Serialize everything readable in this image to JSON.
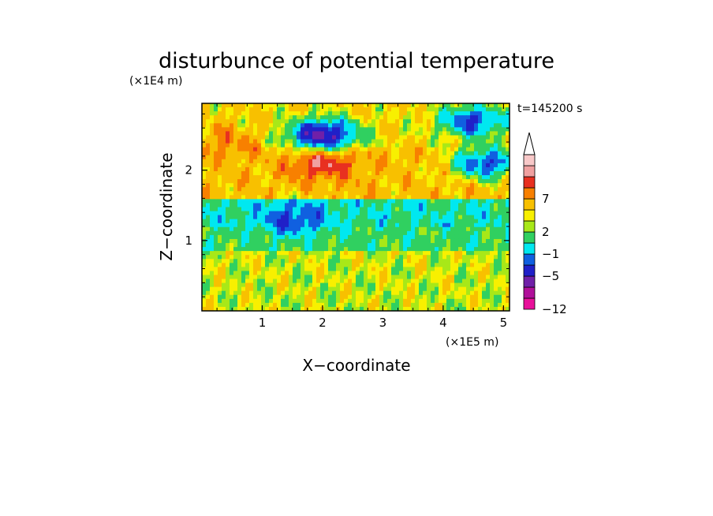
{
  "chart_data": {
    "type": "heatmap",
    "title": "disturbunce of potential temperature",
    "xlabel": "X−coordinate",
    "ylabel": "Z−coordinate",
    "x_unit": "(×1E5 m)",
    "y_unit": "(×1E4 m)",
    "time_label": "t=145200 s",
    "xlim": [
      0,
      5.1
    ],
    "ylim": [
      0,
      2.95
    ],
    "x_ticks": [
      "1",
      "2",
      "3",
      "4",
      "5"
    ],
    "y_ticks": [
      "1",
      "2"
    ],
    "x_tick_values": [
      1,
      2,
      3,
      4,
      5
    ],
    "y_tick_values": [
      1,
      2
    ],
    "colorbar": {
      "levels": [
        -12,
        -10,
        -8,
        -5,
        -3,
        -1,
        1,
        2,
        3,
        5,
        7,
        9,
        11
      ],
      "labels": [
        "−12",
        "−5",
        "−1",
        "2",
        "7"
      ],
      "label_values": [
        -12,
        -5,
        -1,
        2,
        7
      ],
      "colors": [
        "#e8109a",
        "#b0109a",
        "#7020a8",
        "#2020c8",
        "#1060e0",
        "#00e8f0",
        "#30d060",
        "#a8e818",
        "#f8f000",
        "#f8c000",
        "#f88000",
        "#e83020",
        "#f0a0a0",
        "#f8c8c8"
      ],
      "extend": "max"
    },
    "field": {
      "description_of_bands": [
        {
          "z_range": [
            0.0,
            0.85
          ],
          "value": 2
        },
        {
          "z_range": [
            0.85,
            1.2
          ],
          "value": 0
        },
        {
          "z_range": [
            1.2,
            1.6
          ],
          "value": -1
        },
        {
          "z_range": [
            1.6,
            2.3
          ],
          "value": 4
        },
        {
          "z_range": [
            2.3,
            2.95
          ],
          "value": 3
        }
      ],
      "features": [
        {
          "x": 2.0,
          "z": 2.5,
          "value": -9
        },
        {
          "x": 2.0,
          "z": 2.1,
          "value": 9
        },
        {
          "x": 0.4,
          "z": 2.4,
          "value": 6
        },
        {
          "x": 4.7,
          "z": 2.1,
          "value": -5
        },
        {
          "x": 4.5,
          "z": 2.7,
          "value": -5
        },
        {
          "x": 1.5,
          "z": 1.3,
          "value": -5
        }
      ]
    }
  }
}
